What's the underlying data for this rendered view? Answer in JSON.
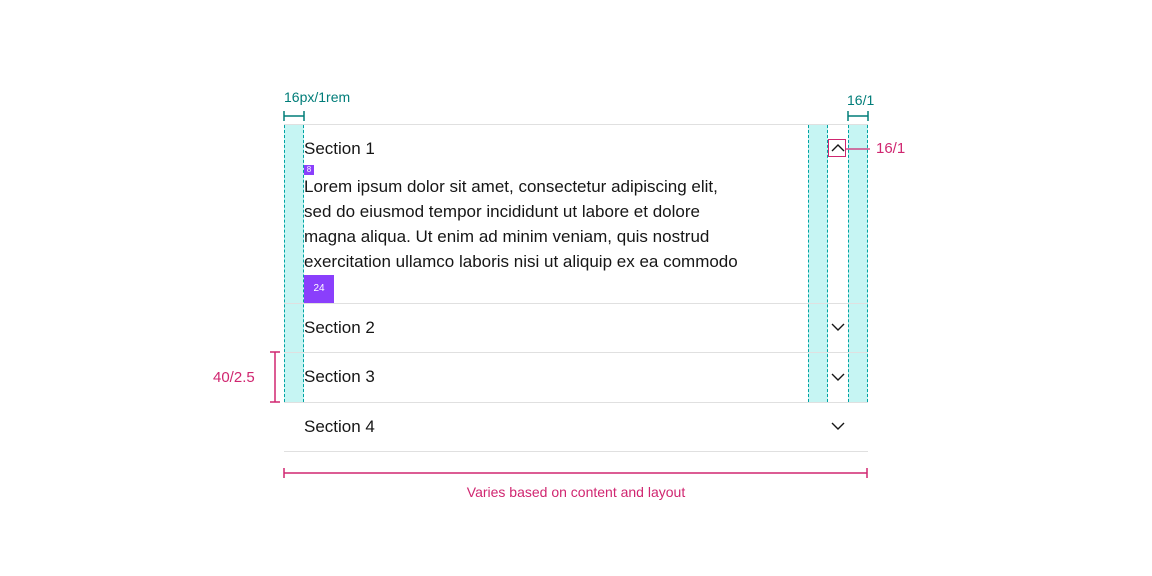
{
  "accordion": {
    "sections": [
      {
        "title": "Section 1",
        "expanded": true
      },
      {
        "title": "Section 2",
        "expanded": false
      },
      {
        "title": "Section 3",
        "expanded": false
      },
      {
        "title": "Section 4",
        "expanded": false
      }
    ],
    "body_lines": [
      "Lorem ipsum dolor sit amet, consectetur adipiscing elit,",
      "sed do eiusmod tempor incididunt ut labore et dolore",
      "magna aliqua. Ut enim ad minim veniam, quis nostrud",
      "exercitation ullamco laboris nisi ut aliquip ex ea commodo"
    ]
  },
  "annotations": {
    "left_padding": "16px/1rem",
    "right_padding": "16/1",
    "icon_size": "16/1",
    "row_height": "40/2.5",
    "width_note": "Varies based on content and layout",
    "spacing_small": "8",
    "spacing_large": "24"
  },
  "colors": {
    "teal": "#007d79",
    "cyan_fill": "#c6f5f3",
    "magenta": "#d02670",
    "purple": "#8a3ffc",
    "divider": "#e0e0e0"
  }
}
